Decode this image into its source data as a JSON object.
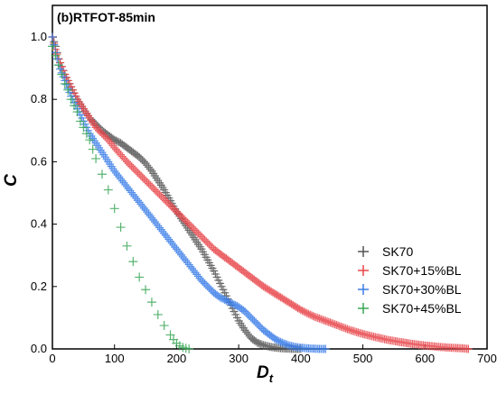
{
  "chart_data": {
    "type": "scatter",
    "title": "(b)RTFOT-85min",
    "xlabel": "D",
    "xlabel_sub": "t",
    "ylabel": "C",
    "xlim": [
      0,
      700
    ],
    "ylim": [
      0,
      1.05
    ],
    "xticks": [
      0,
      100,
      200,
      300,
      400,
      500,
      600,
      700
    ],
    "yticks": [
      0.0,
      0.2,
      0.4,
      0.6,
      0.8,
      1.0
    ],
    "xtick_labels": [
      "0",
      "100",
      "200",
      "300",
      "400",
      "500",
      "600",
      "700"
    ],
    "ytick_labels": [
      "0.0",
      "0.2",
      "0.4",
      "0.6",
      "0.8",
      "1.0"
    ],
    "marker": "+",
    "grid": false,
    "legend_position": "right",
    "series": [
      {
        "name": "SK70",
        "color": "#555555",
        "points": [
          [
            0,
            1.0
          ],
          [
            5,
            0.97
          ],
          [
            10,
            0.93
          ],
          [
            20,
            0.88
          ],
          [
            30,
            0.84
          ],
          [
            40,
            0.8
          ],
          [
            50,
            0.77
          ],
          [
            60,
            0.74
          ],
          [
            70,
            0.72
          ],
          [
            80,
            0.7
          ],
          [
            90,
            0.685
          ],
          [
            100,
            0.67
          ],
          [
            110,
            0.66
          ],
          [
            120,
            0.645
          ],
          [
            130,
            0.63
          ],
          [
            140,
            0.615
          ],
          [
            150,
            0.595
          ],
          [
            160,
            0.57
          ],
          [
            170,
            0.54
          ],
          [
            180,
            0.51
          ],
          [
            190,
            0.475
          ],
          [
            200,
            0.44
          ],
          [
            210,
            0.41
          ],
          [
            220,
            0.38
          ],
          [
            230,
            0.35
          ],
          [
            240,
            0.32
          ],
          [
            250,
            0.285
          ],
          [
            260,
            0.25
          ],
          [
            270,
            0.21
          ],
          [
            280,
            0.17
          ],
          [
            290,
            0.13
          ],
          [
            300,
            0.09
          ],
          [
            310,
            0.06
          ],
          [
            320,
            0.035
          ],
          [
            330,
            0.02
          ],
          [
            340,
            0.012
          ],
          [
            350,
            0.007
          ],
          [
            360,
            0.004
          ],
          [
            370,
            0.002
          ],
          [
            380,
            0.001
          ],
          [
            390,
            0.0
          ],
          [
            400,
            0.0
          ]
        ]
      },
      {
        "name": "SK70+15%BL",
        "color": "#e8474c",
        "points": [
          [
            0,
            1.0
          ],
          [
            5,
            0.96
          ],
          [
            10,
            0.93
          ],
          [
            20,
            0.88
          ],
          [
            30,
            0.84
          ],
          [
            40,
            0.8
          ],
          [
            50,
            0.77
          ],
          [
            60,
            0.74
          ],
          [
            70,
            0.71
          ],
          [
            80,
            0.69
          ],
          [
            90,
            0.67
          ],
          [
            100,
            0.645
          ],
          [
            120,
            0.6
          ],
          [
            140,
            0.56
          ],
          [
            160,
            0.52
          ],
          [
            180,
            0.48
          ],
          [
            200,
            0.44
          ],
          [
            220,
            0.4
          ],
          [
            240,
            0.36
          ],
          [
            260,
            0.32
          ],
          [
            280,
            0.29
          ],
          [
            300,
            0.26
          ],
          [
            320,
            0.23
          ],
          [
            340,
            0.2
          ],
          [
            360,
            0.175
          ],
          [
            380,
            0.15
          ],
          [
            400,
            0.125
          ],
          [
            420,
            0.105
          ],
          [
            440,
            0.09
          ],
          [
            460,
            0.075
          ],
          [
            480,
            0.06
          ],
          [
            500,
            0.048
          ],
          [
            520,
            0.038
          ],
          [
            540,
            0.029
          ],
          [
            560,
            0.022
          ],
          [
            580,
            0.016
          ],
          [
            600,
            0.011
          ],
          [
            620,
            0.007
          ],
          [
            640,
            0.004
          ],
          [
            660,
            0.002
          ],
          [
            670,
            0.0
          ]
        ]
      },
      {
        "name": "SK70+30%BL",
        "color": "#3a7de8",
        "points": [
          [
            0,
            1.0
          ],
          [
            5,
            0.95
          ],
          [
            10,
            0.91
          ],
          [
            20,
            0.86
          ],
          [
            30,
            0.81
          ],
          [
            40,
            0.77
          ],
          [
            50,
            0.73
          ],
          [
            60,
            0.69
          ],
          [
            70,
            0.66
          ],
          [
            80,
            0.63
          ],
          [
            90,
            0.6
          ],
          [
            100,
            0.57
          ],
          [
            110,
            0.545
          ],
          [
            120,
            0.52
          ],
          [
            130,
            0.495
          ],
          [
            140,
            0.47
          ],
          [
            150,
            0.445
          ],
          [
            160,
            0.42
          ],
          [
            170,
            0.395
          ],
          [
            180,
            0.37
          ],
          [
            190,
            0.345
          ],
          [
            200,
            0.32
          ],
          [
            210,
            0.295
          ],
          [
            220,
            0.27
          ],
          [
            230,
            0.245
          ],
          [
            240,
            0.22
          ],
          [
            250,
            0.2
          ],
          [
            260,
            0.18
          ],
          [
            270,
            0.165
          ],
          [
            280,
            0.155
          ],
          [
            290,
            0.145
          ],
          [
            300,
            0.135
          ],
          [
            310,
            0.12
          ],
          [
            320,
            0.1
          ],
          [
            330,
            0.08
          ],
          [
            340,
            0.06
          ],
          [
            350,
            0.045
          ],
          [
            360,
            0.03
          ],
          [
            370,
            0.02
          ],
          [
            380,
            0.012
          ],
          [
            390,
            0.007
          ],
          [
            400,
            0.004
          ],
          [
            410,
            0.002
          ],
          [
            420,
            0.001
          ],
          [
            430,
            0.0
          ],
          [
            440,
            0.0
          ]
        ]
      },
      {
        "name": "SK70+45%BL",
        "color": "#3aa757",
        "points": [
          [
            0,
            0.97
          ],
          [
            5,
            0.94
          ],
          [
            10,
            0.91
          ],
          [
            15,
            0.88
          ],
          [
            20,
            0.85
          ],
          [
            25,
            0.83
          ],
          [
            30,
            0.8
          ],
          [
            35,
            0.78
          ],
          [
            40,
            0.76
          ],
          [
            45,
            0.73
          ],
          [
            50,
            0.71
          ],
          [
            55,
            0.69
          ],
          [
            60,
            0.67
          ],
          [
            65,
            0.64
          ],
          [
            70,
            0.61
          ],
          [
            80,
            0.56
          ],
          [
            90,
            0.51
          ],
          [
            100,
            0.45
          ],
          [
            110,
            0.39
          ],
          [
            120,
            0.33
          ],
          [
            130,
            0.28
          ],
          [
            140,
            0.23
          ],
          [
            150,
            0.19
          ],
          [
            160,
            0.15
          ],
          [
            170,
            0.11
          ],
          [
            180,
            0.075
          ],
          [
            190,
            0.045
          ],
          [
            195,
            0.03
          ],
          [
            200,
            0.018
          ],
          [
            205,
            0.01
          ],
          [
            210,
            0.005
          ],
          [
            215,
            0.002
          ],
          [
            220,
            0.0
          ]
        ]
      }
    ]
  }
}
